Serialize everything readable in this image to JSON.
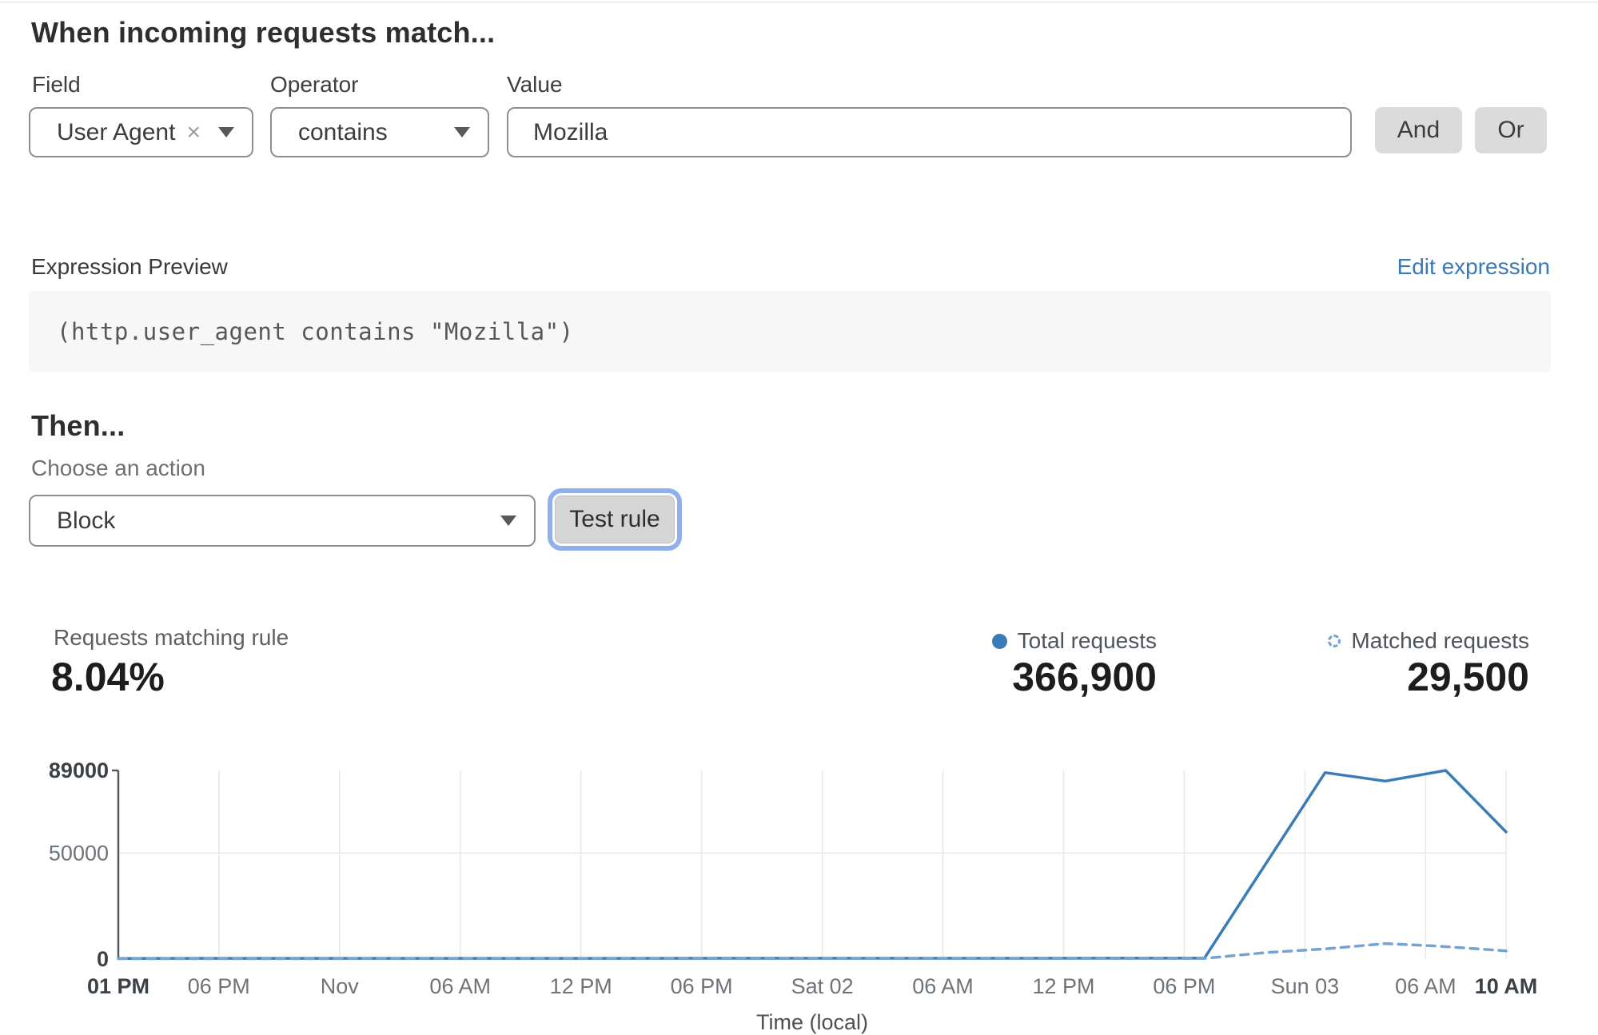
{
  "match_section": {
    "heading": "When incoming requests match...",
    "field": {
      "label": "Field",
      "selected": "User Agent",
      "clear_icon": "×"
    },
    "operator": {
      "label": "Operator",
      "selected": "contains"
    },
    "value": {
      "label": "Value",
      "text": "Mozilla"
    },
    "and_button": "And",
    "or_button": "Or"
  },
  "expression_preview": {
    "label": "Expression Preview",
    "edit_link": "Edit expression",
    "code": "(http.user_agent contains \"Mozilla\")"
  },
  "then_section": {
    "heading": "Then...",
    "action_label": "Choose an action",
    "action_selected": "Block",
    "test_button": "Test rule"
  },
  "stats": {
    "matching_label": "Requests matching rule",
    "matching_value": "8.04%",
    "total_label": "Total requests",
    "total_value": "366,900",
    "matched_label": "Matched requests",
    "matched_value": "29,500"
  },
  "chart_data": {
    "type": "line",
    "title": "",
    "xlabel": "Time (local)",
    "ylabel": "",
    "ylim": [
      0,
      89000
    ],
    "hours_span": 69,
    "grid": {
      "vertical_at_every_x_tick": true,
      "horizontal_at": [
        50000
      ]
    },
    "legend_position": "top-right header row with stat values",
    "y_ticks": [
      {
        "value": 89000,
        "label": "89000",
        "bold": true
      },
      {
        "value": 50000,
        "label": "50000",
        "bold": false
      },
      {
        "value": 0,
        "label": "0",
        "bold": true
      }
    ],
    "x_ticks": [
      {
        "hour": 0,
        "label": "01 PM",
        "bold": true
      },
      {
        "hour": 5,
        "label": "06 PM",
        "bold": false
      },
      {
        "hour": 11,
        "label": "Nov",
        "bold": false
      },
      {
        "hour": 17,
        "label": "06 AM",
        "bold": false
      },
      {
        "hour": 23,
        "label": "12 PM",
        "bold": false
      },
      {
        "hour": 29,
        "label": "06 PM",
        "bold": false
      },
      {
        "hour": 35,
        "label": "Sat 02",
        "bold": false
      },
      {
        "hour": 41,
        "label": "06 AM",
        "bold": false
      },
      {
        "hour": 47,
        "label": "12 PM",
        "bold": false
      },
      {
        "hour": 53,
        "label": "06 PM",
        "bold": false
      },
      {
        "hour": 59,
        "label": "Sun 03",
        "bold": false
      },
      {
        "hour": 65,
        "label": "06 AM",
        "bold": false
      },
      {
        "hour": 69,
        "label": "10 AM",
        "bold": true
      }
    ],
    "series": [
      {
        "name": "Total requests",
        "style": "solid",
        "color": "#3b7cb8",
        "points": [
          [
            0,
            300
          ],
          [
            54,
            400
          ],
          [
            60,
            88000
          ],
          [
            63,
            84000
          ],
          [
            66,
            89000
          ],
          [
            69,
            60000
          ]
        ]
      },
      {
        "name": "Matched requests",
        "style": "dashed",
        "color": "#76a3cf",
        "points": [
          [
            0,
            200
          ],
          [
            54,
            300
          ],
          [
            57,
            3000
          ],
          [
            60,
            4800
          ],
          [
            63,
            7300
          ],
          [
            65.5,
            6200
          ],
          [
            69,
            3900
          ]
        ]
      }
    ]
  },
  "colors": {
    "accent_blue": "#3b7cb8",
    "dashed_blue": "#76a3cf",
    "link_blue": "#3879ba",
    "button_gray": "#dbdbdb",
    "focus_ring": "#8fb0ec",
    "axis_dark": "#55595e",
    "grid_light": "#e8e8e8",
    "tick_gray": "#6e7378",
    "tick_bold": "#3c4147"
  }
}
